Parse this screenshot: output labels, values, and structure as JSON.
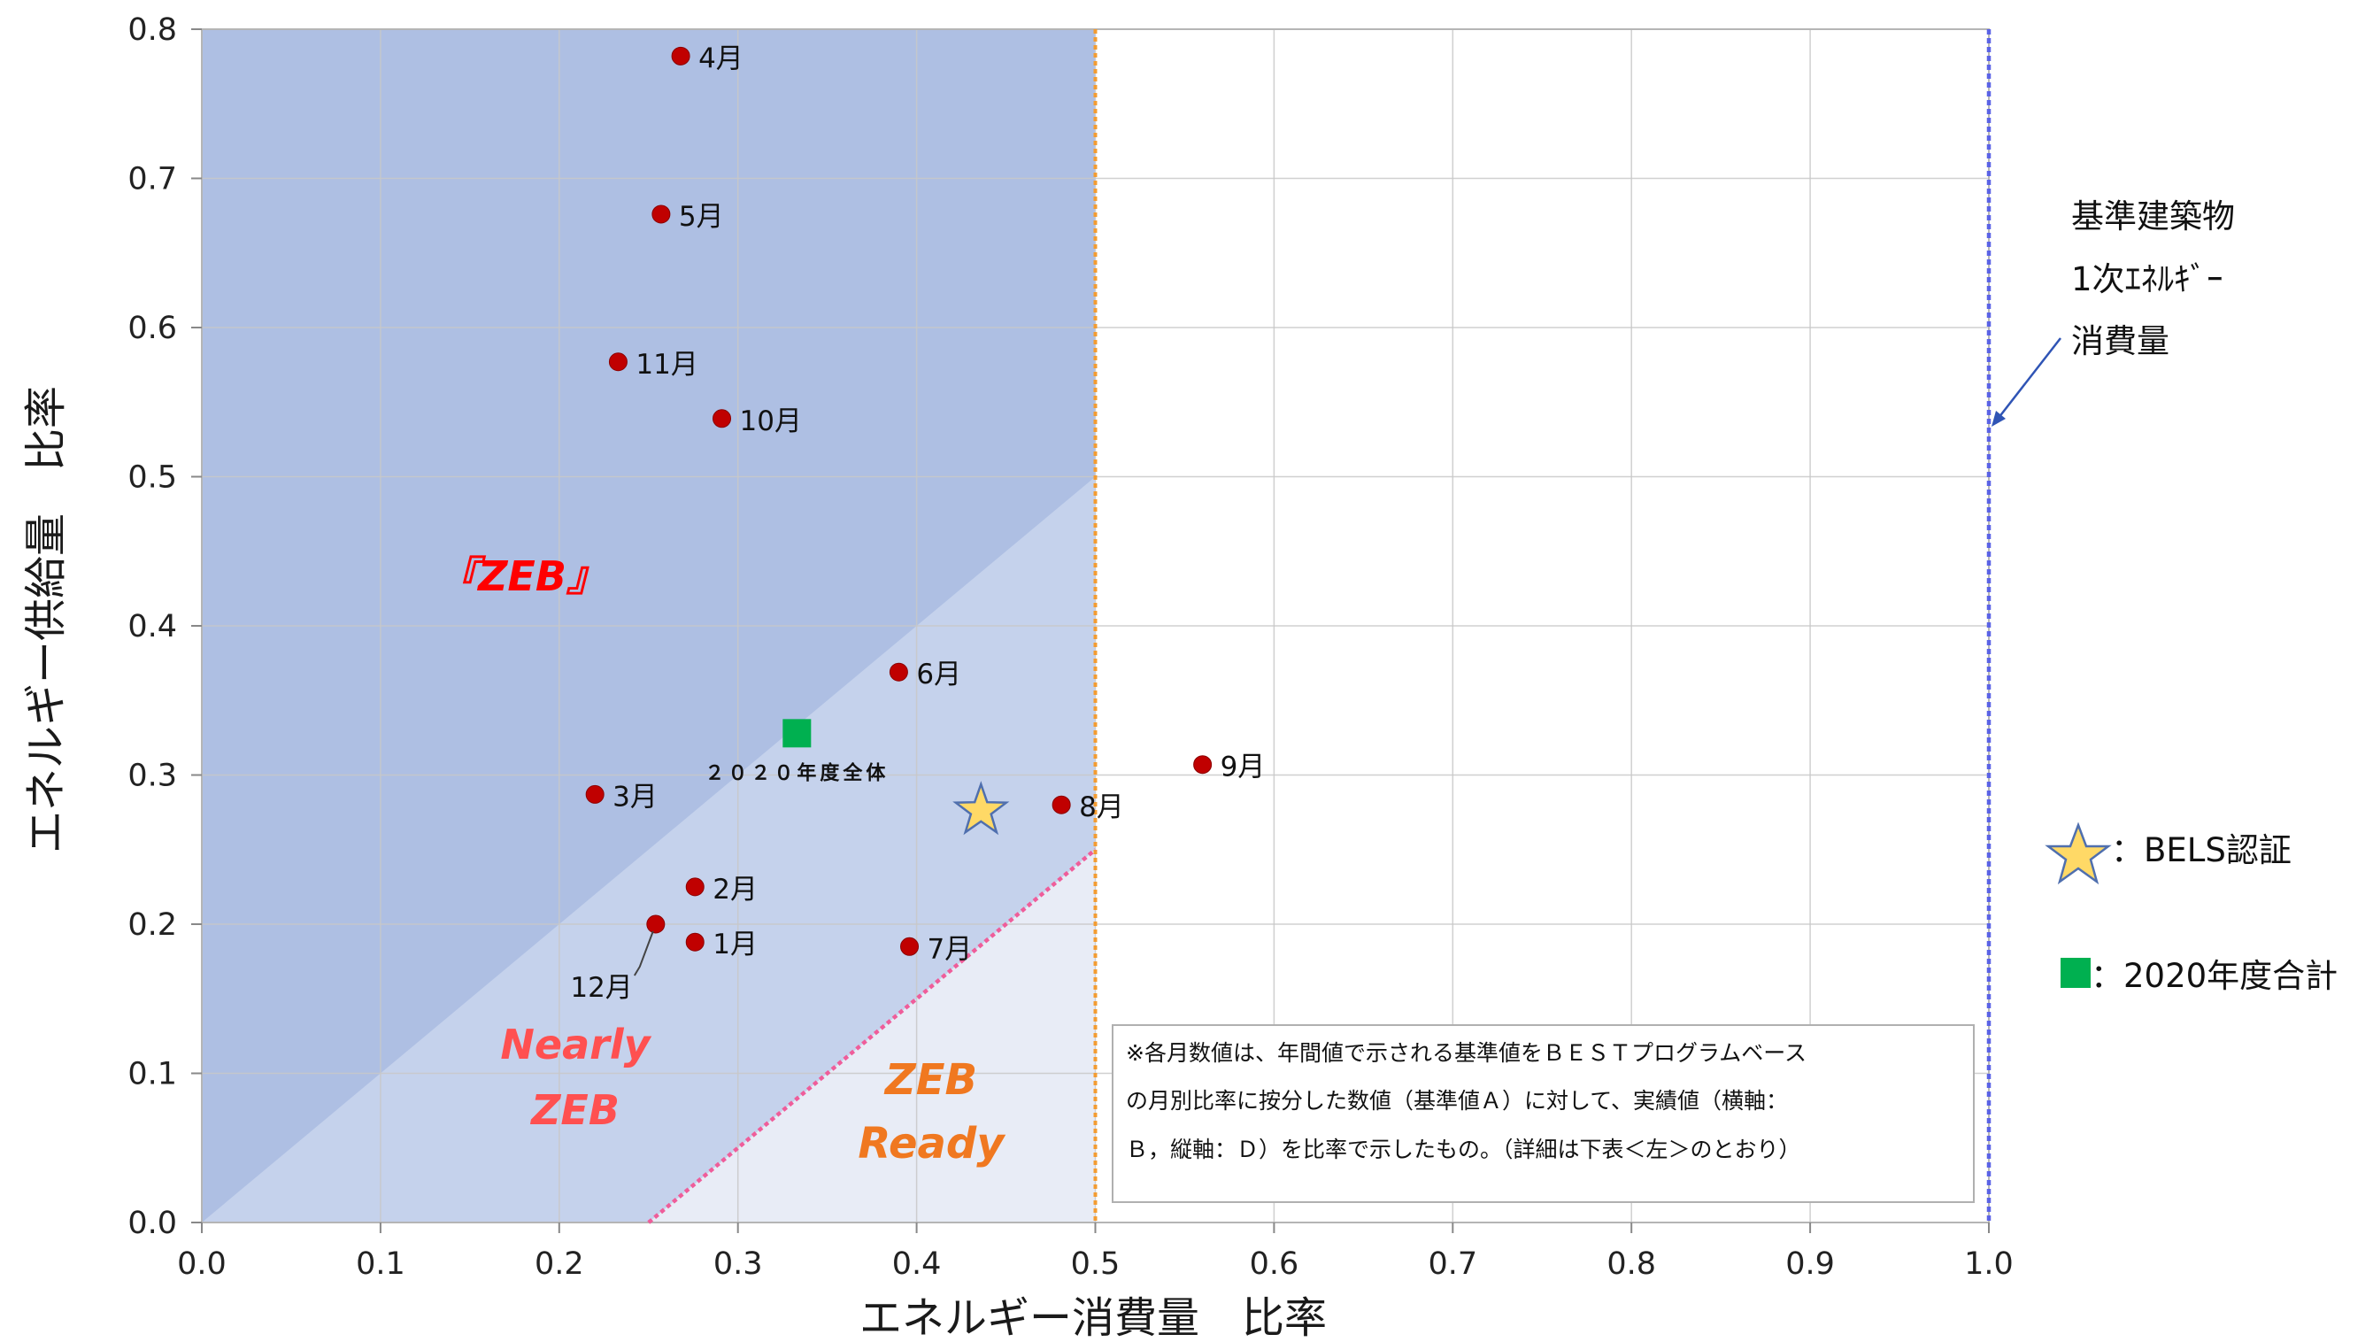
{
  "chart_data": {
    "type": "scatter",
    "xlabel": "エネルギー消費量　比率",
    "ylabel": "エネルギー供給量　比率",
    "xlim": [
      0.0,
      1.0
    ],
    "ylim": [
      0.0,
      0.8
    ],
    "x_ticks": [
      "0.0",
      "0.1",
      "0.2",
      "0.3",
      "0.4",
      "0.5",
      "0.6",
      "0.7",
      "0.8",
      "0.9",
      "1.0"
    ],
    "y_ticks": [
      "0.0",
      "0.1",
      "0.2",
      "0.3",
      "0.4",
      "0.5",
      "0.6",
      "0.7",
      "0.8"
    ],
    "grid": true,
    "points": [
      {
        "label": "4月",
        "x": 0.268,
        "y": 0.782
      },
      {
        "label": "5月",
        "x": 0.257,
        "y": 0.676
      },
      {
        "label": "11月",
        "x": 0.233,
        "y": 0.577
      },
      {
        "label": "10月",
        "x": 0.291,
        "y": 0.539
      },
      {
        "label": "6月",
        "x": 0.39,
        "y": 0.369
      },
      {
        "label": "9月",
        "x": 0.56,
        "y": 0.307
      },
      {
        "label": "3月",
        "x": 0.22,
        "y": 0.287
      },
      {
        "label": "8月",
        "x": 0.481,
        "y": 0.28
      },
      {
        "label": "2月",
        "x": 0.276,
        "y": 0.225
      },
      {
        "label": "12月",
        "x": 0.254,
        "y": 0.2
      },
      {
        "label": "1月",
        "x": 0.276,
        "y": 0.188
      },
      {
        "label": "7月",
        "x": 0.396,
        "y": 0.185
      }
    ],
    "fiscal_total": {
      "label": "２０２０年度全体",
      "x": 0.333,
      "y": 0.328
    },
    "bels": {
      "x": 0.436,
      "y": 0.276
    },
    "regions": {
      "zeb": "『ZEB』",
      "nearly_zeb": [
        "Nearly",
        "ZEB"
      ],
      "zeb_ready": [
        "ZEB",
        "Ready"
      ]
    },
    "reference_line": {
      "x": 1.0,
      "label": [
        "基準建築物",
        "1次ｴﾈﾙｷﾞｰ",
        "消費量"
      ]
    },
    "ready_threshold_line": {
      "x": 0.5
    },
    "legend": [
      {
        "symbol": "star",
        "label": "：BELS認証"
      },
      {
        "symbol": "square",
        "label": "：2020年度合計"
      }
    ],
    "note": [
      "※各月数値は、年間値で示される基準値をＢＥＳＴプログラムベース",
      "の月別比率に按分した数値（基準値Ａ）に対して、実績値（横軸：",
      "Ｂ，縦軸：Ｄ）を比率で示したもの。（詳細は下表＜左＞のとおり）"
    ],
    "colors": {
      "zeb_region": "#aebfe3",
      "nearly_region": "#c5d2ec",
      "ready_region": "#e8ecf6",
      "point": "#c00000",
      "total": "#00b050",
      "star": "#ffd966",
      "orange_line": "#f39c32",
      "pink_line": "#ef5d9a",
      "blue_line": "#5b63e6",
      "zeb_text": "#ff0000",
      "nearly_text": "#ff5050",
      "ready_text": "#f07820"
    }
  }
}
